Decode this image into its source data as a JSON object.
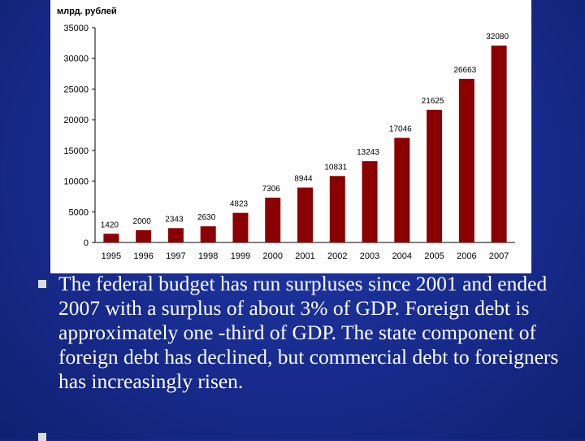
{
  "slide": {
    "bullets": [
      {
        "text": "The federal budget has  run surpluses since 2001 and ended 2007 with a surplus of about 3% of GDP. Foreign debt is approximately one -third of GDP. The state component of foreign debt has declined, but commercial debt to foreigners has increasingly risen."
      },
      {
        "text": ""
      }
    ]
  },
  "chart_data": {
    "type": "bar",
    "ylabel": "млрд. рублей",
    "categories": [
      "1995",
      "1996",
      "1997",
      "1998",
      "1999",
      "2000",
      "2001",
      "2002",
      "2003",
      "2004",
      "2005",
      "2006",
      "2007"
    ],
    "values": [
      1420,
      2000,
      2343,
      2630,
      4823,
      7306,
      8944,
      10831,
      13243,
      17046,
      21625,
      26663,
      32080
    ],
    "value_labels": [
      "1420",
      "2000",
      "2343",
      "2630",
      "4823",
      "7306",
      "8944",
      "10831",
      "13243",
      "17046",
      "21625",
      "26663",
      "32080"
    ],
    "ylim": [
      0,
      35000
    ],
    "yticks": [
      "0",
      "5000",
      "10000",
      "15000",
      "20000",
      "25000",
      "30000",
      "35000"
    ],
    "ytick_values": [
      0,
      5000,
      10000,
      15000,
      20000,
      25000,
      30000,
      35000
    ],
    "bar_color": "#8b0000",
    "grid": false
  }
}
